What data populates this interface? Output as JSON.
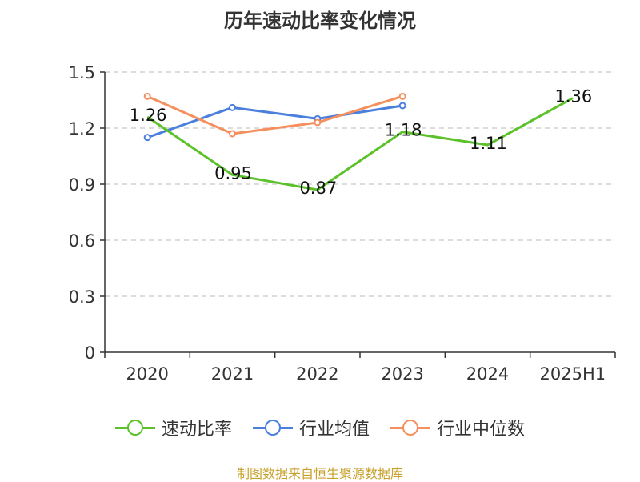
{
  "chart_data": {
    "type": "line",
    "title": "历年速动比率变化情况",
    "categories": [
      "2020",
      "2021",
      "2022",
      "2023",
      "2024",
      "2025H1"
    ],
    "ylim": [
      0,
      1.5
    ],
    "yticks": [
      "0",
      "0.3",
      "0.6",
      "0.9",
      "1.2",
      "1.5"
    ],
    "grid": true,
    "legend_position": "bottom",
    "series": [
      {
        "name": "速动比率",
        "color": "#5cc12a",
        "values": [
          1.26,
          0.95,
          0.87,
          1.18,
          1.11,
          1.36
        ],
        "labels": [
          "1.26",
          "0.95",
          "0.87",
          "1.18",
          "1.11",
          "1.36"
        ]
      },
      {
        "name": "行业均值",
        "color": "#4a7fdc",
        "values": [
          1.15,
          1.31,
          1.25,
          1.32,
          null,
          null
        ]
      },
      {
        "name": "行业中位数",
        "color": "#f58f5e",
        "values": [
          1.37,
          1.17,
          1.23,
          1.37,
          null,
          null
        ]
      }
    ]
  },
  "footer": {
    "source": "制图数据来自恒生聚源数据库"
  }
}
